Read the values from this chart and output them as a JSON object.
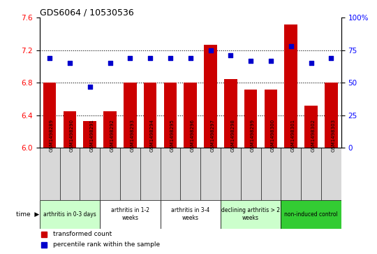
{
  "title": "GDS6064 / 10530536",
  "samples": [
    "GSM1498289",
    "GSM1498290",
    "GSM1498291",
    "GSM1498292",
    "GSM1498293",
    "GSM1498294",
    "GSM1498295",
    "GSM1498296",
    "GSM1498297",
    "GSM1498298",
    "GSM1498299",
    "GSM1498300",
    "GSM1498301",
    "GSM1498302",
    "GSM1498303"
  ],
  "bar_values": [
    6.8,
    6.45,
    6.33,
    6.45,
    6.8,
    6.8,
    6.8,
    6.8,
    7.27,
    6.85,
    6.72,
    6.72,
    7.52,
    6.52,
    6.8
  ],
  "dot_values": [
    69,
    65,
    47,
    65,
    69,
    69,
    69,
    69,
    75,
    71,
    67,
    67,
    78,
    65,
    69
  ],
  "bar_color": "#cc0000",
  "dot_color": "#0000cc",
  "ylim_left": [
    6.0,
    7.6
  ],
  "ylim_right": [
    0,
    100
  ],
  "yticks_left": [
    6.0,
    6.4,
    6.8,
    7.2,
    7.6
  ],
  "yticks_right": [
    0,
    25,
    50,
    75,
    100
  ],
  "ytick_labels_right": [
    "0",
    "25",
    "50",
    "75",
    "100%"
  ],
  "groups": [
    {
      "label": "arthritis in 0-3 days",
      "start": 0,
      "end": 3,
      "color": "#ccffcc"
    },
    {
      "label": "arthritis in 1-2\nweeks",
      "start": 3,
      "end": 6,
      "color": "#ffffff"
    },
    {
      "label": "arthritis in 3-4\nweeks",
      "start": 6,
      "end": 9,
      "color": "#ffffff"
    },
    {
      "label": "declining arthritis > 2\nweeks",
      "start": 9,
      "end": 12,
      "color": "#ccffcc"
    },
    {
      "label": "non-induced control",
      "start": 12,
      "end": 15,
      "color": "#33cc33"
    }
  ],
  "grid_color": "black",
  "background_color": "white",
  "bar_bottom": 6.0,
  "cell_color": "#d8d8d8"
}
